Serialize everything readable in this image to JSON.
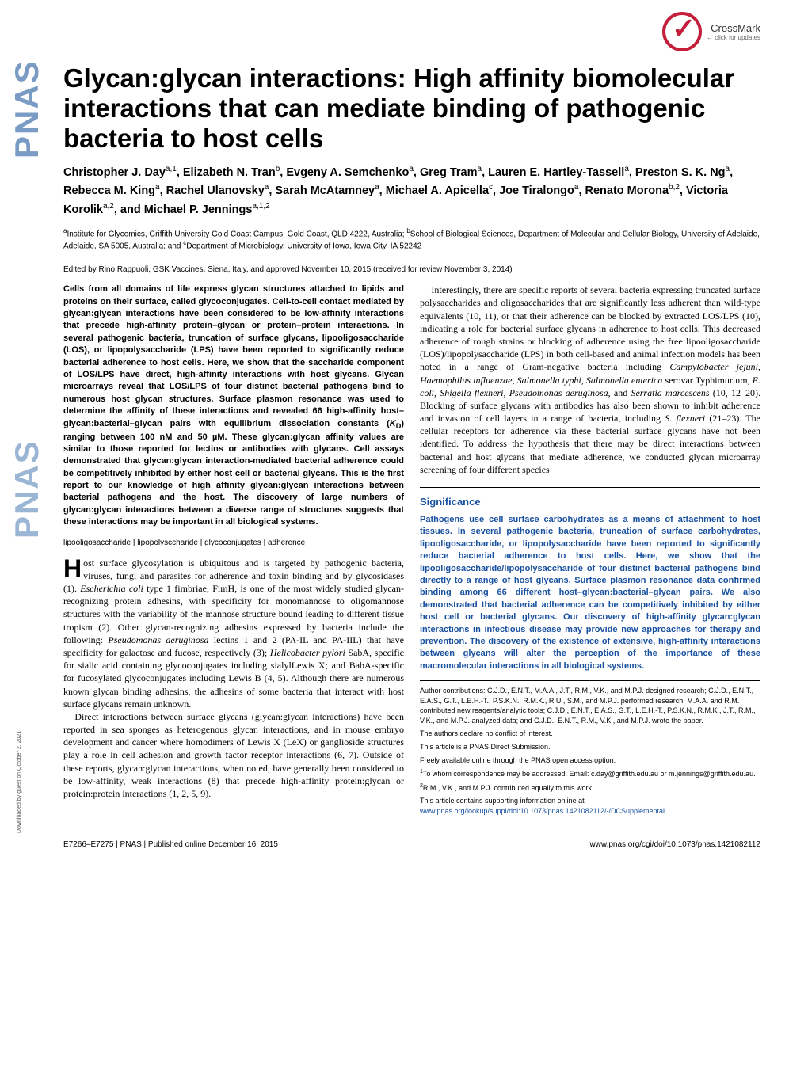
{
  "crossmark": {
    "text": "CrossMark",
    "sub": "← click for updates"
  },
  "pnas_label": "PNAS",
  "title": "Glycan:glycan interactions: High affinity biomolecular interactions that can mediate binding of pathogenic bacteria to host cells",
  "authors_html": "Christopher J. Day<sup>a,1</sup>, Elizabeth N. Tran<sup>b</sup>, Evgeny A. Semchenko<sup>a</sup>, Greg Tram<sup>a</sup>, Lauren E. Hartley-Tassell<sup>a</sup>, Preston S. K. Ng<sup>a</sup>, Rebecca M. King<sup>a</sup>, Rachel Ulanovsky<sup>a</sup>, Sarah McAtamney<sup>a</sup>, Michael A. Apicella<sup>c</sup>, Joe Tiralongo<sup>a</sup>, Renato Morona<sup>b,2</sup>, Victoria Korolik<sup>a,2</sup>, and Michael P. Jennings<sup>a,1,2</sup>",
  "affiliations_html": "<sup>a</sup>Institute for Glycomics, Griffith University Gold Coast Campus, Gold Coast, QLD 4222, Australia; <sup>b</sup>School of Biological Sciences, Department of Molecular and Cellular Biology, University of Adelaide, Adelaide, SA 5005, Australia; and <sup>c</sup>Department of Microbiology, University of Iowa, Iowa City, IA 52242",
  "edited": "Edited by Rino Rappuoli, GSK Vaccines, Siena, Italy, and approved November 10, 2015 (received for review November 3, 2014)",
  "abstract_html": "Cells from all domains of life express glycan structures attached to lipids and proteins on their surface, called glycoconjugates. Cell-to-cell contact mediated by glycan:glycan interactions have been considered to be low-affinity interactions that precede high-affinity protein–glycan or protein–protein interactions. In several pathogenic bacteria, truncation of surface glycans, lipooligosaccharide (LOS), or lipopolysaccharide (LPS) have been reported to significantly reduce bacterial adherence to host cells. Here, we show that the saccharide component of LOS/LPS have direct, high-affinity interactions with host glycans. Glycan microarrays reveal that LOS/LPS of four distinct bacterial pathogens bind to numerous host glycan structures. Surface plasmon resonance was used to determine the affinity of these interactions and revealed 66 high-affinity host–glycan:bacterial–glycan pairs with equilibrium dissociation constants (<i>K</i><sub>D</sub>) ranging between 100 nM and 50 µM. These glycan:glycan affinity values are similar to those reported for lectins or antibodies with glycans. Cell assays demonstrated that glycan:glycan interaction-mediated bacterial adherence could be competitively inhibited by either host cell or bacterial glycans. This is the first report to our knowledge of high affinity glycan:glycan interactions between bacterial pathogens and the host. The discovery of large numbers of glycan:glycan interactions between a diverse range of structures suggests that these interactions may be important in all biological systems.",
  "keywords": "lipooligosaccharide | lipopolysccharide | glycoconjugates | adherence",
  "body_left_p1_html": "<span class='dropcap'>H</span>ost surface glycosylation is ubiquitous and is targeted by pathogenic bacteria, viruses, fungi and parasites for adherence and toxin binding and by glycosidases (1). <i>Escherichia coli</i> type 1 fimbriae, FimH, is one of the most widely studied glycan-recognizing protein adhesins, with specificity for monomannose to oligomannose structures with the variability of the mannose structure bound leading to different tissue tropism (2). Other glycan-recognizing adhesins expressed by bacteria include the following: <i>Pseudomonas aeruginosa</i> lectins 1 and 2 (PA-IL and PA-IIL) that have specificity for galactose and fucose, respectively (3); <i>Helicobacter pylori</i> SabA, specific for sialic acid containing glycoconjugates including sialylLewis X; and BabA-specific for fucosylated glycoconjugates including Lewis B (4, 5). Although there are numerous known glycan binding adhesins, the adhesins of some bacteria that interact with host surface glycans remain unknown.",
  "body_left_p2_html": "Direct interactions between surface glycans (glycan:glycan interactions) have been reported in sea sponges as heterogenous glycan interactions, and in mouse embryo development and cancer where homodimers of Lewis X (LeX) or ganglioside structures play a role in cell adhesion and growth factor receptor interactions (6, 7). Outside of these reports, glycan:glycan interactions, when noted, have generally been considered to be low-affinity, weak interactions (8) that precede high-affinity protein:glycan or protein:protein interactions (1, 2, 5, 9).",
  "body_right_p1_html": "Interestingly, there are specific reports of several bacteria expressing truncated surface polysaccharides and oligosaccharides that are significantly less adherent than wild-type equivalents (10, 11), or that their adherence can be blocked by extracted LOS/LPS (10), indicating a role for bacterial surface glycans in adherence to host cells. This decreased adherence of rough strains or blocking of adherence using the free lipooligosaccharide (LOS)/lipopolysaccharide (LPS) in both cell-based and animal infection models has been noted in a range of Gram-negative bacteria including <i>Campylobacter jejuni</i>, <i>Haemophilus influenzae</i>, <i>Salmonella typhi</i>, <i>Salmonella enterica</i> serovar Typhimurium, <i>E. coli</i>, <i>Shigella flexneri</i>, <i>Pseudomonas aeruginosa</i>, and <i>Serratia marcescens</i> (10, 12–20). Blocking of surface glycans with antibodies has also been shown to inhibit adherence and invasion of cell layers in a range of bacteria, including <i>S. flexneri</i> (21–23). The cellular receptors for adherence via these bacterial surface glycans have not been identified. To address the hypothesis that there may be direct interactions between bacterial and host glycans that mediate adherence, we conducted glycan microarray screening of four different species",
  "significance": {
    "title": "Significance",
    "text": "Pathogens use cell surface carbohydrates as a means of attachment to host tissues. In several pathogenic bacteria, truncation of surface carbohydrates, lipooligosaccharide, or lipopolysaccharide have been reported to significantly reduce bacterial adherence to host cells. Here, we show that the lipooligosaccharide/lipopolysaccharide of four distinct bacterial pathogens bind directly to a range of host glycans. Surface plasmon resonance data confirmed binding among 66 different host–glycan:bacterial–glycan pairs. We also demonstrated that bacterial adherence can be competitively inhibited by either host cell or bacterial glycans. Our discovery of high-affinity glycan:glycan interactions in infectious disease may provide new approaches for therapy and prevention. The discovery of the existence of extensive, high-affinity interactions between glycans will alter the perception of the importance of these macromolecular interactions in all biological systems."
  },
  "footnotes": {
    "contributions": "Author contributions: C.J.D., E.N.T., M.A.A., J.T., R.M., V.K., and M.P.J. designed research; C.J.D., E.N.T., E.A.S., G.T., L.E.H.-T., P.S.K.N., R.M.K., R.U., S.M., and M.P.J. performed research; M.A.A. and R.M. contributed new reagents/analytic tools; C.J.D., E.N.T., E.A.S., G.T., L.E.H.-T., P.S.K.N., R.M.K., J.T., R.M., V.K., and M.P.J. analyzed data; and C.J.D., E.N.T., R.M., V.K., and M.P.J. wrote the paper.",
    "conflict": "The authors declare no conflict of interest.",
    "submission": "This article is a PNAS Direct Submission.",
    "openaccess": "Freely available online through the PNAS open access option.",
    "corresponding_html": "<sup>1</sup>To whom correspondence may be addressed. Email: c.day@griffith.edu.au or m.jennings@griffith.edu.au.",
    "equal_html": "<sup>2</sup>R.M., V.K., and M.P.J. contributed equally to this work.",
    "supporting_html": "This article contains supporting information online at <a href='#'>www.pnas.org/lookup/suppl/doi:10.1073/pnas.1421082112/-/DCSupplemental</a>."
  },
  "footer": {
    "left": "E7266–E7275  |  PNAS  |  Published online December 16, 2015",
    "right": "www.pnas.org/cgi/doi/10.1073/pnas.1421082112"
  },
  "download_note": "Downloaded by guest on October 2, 2021"
}
